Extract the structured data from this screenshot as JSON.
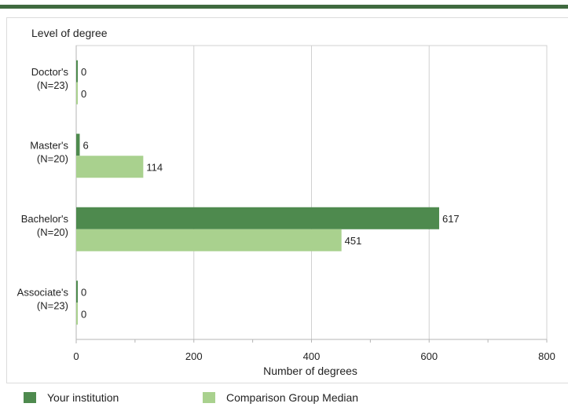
{
  "chart_data": {
    "type": "bar",
    "orientation": "horizontal",
    "title": "Level of degree",
    "xlabel": "Number of degrees",
    "xlim": [
      0,
      800
    ],
    "xticks": [
      0,
      200,
      400,
      600,
      800
    ],
    "categories": [
      [
        "Doctor's",
        "(N=23)"
      ],
      [
        "Master's",
        "(N=20)"
      ],
      [
        "Bachelor's",
        "(N=20)"
      ],
      [
        "Associate's",
        "(N=23)"
      ]
    ],
    "series": [
      {
        "name": "Your institution",
        "color": "#4e8a4e",
        "values": [
          0,
          6,
          617,
          0
        ]
      },
      {
        "name": "Comparison Group Median",
        "color": "#a9d18e",
        "values": [
          0,
          114,
          451,
          0
        ]
      }
    ],
    "grid": true,
    "legend": "bottom"
  }
}
